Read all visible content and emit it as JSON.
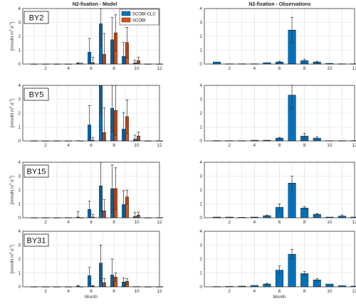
{
  "titles": {
    "model": "N2-fixation - Model",
    "obs": "N2-fixation - Observations"
  },
  "legend": [
    "SCOBI-CLC",
    "SCOBI"
  ],
  "ylabel": "[mmolN m^2 d^-1]",
  "xlabel": "Month",
  "colors": {
    "clc": "#0072bd",
    "scobi": "#d95319",
    "grid": "#dcdcdc",
    "axis": "#222222"
  },
  "chart_data": [
    {
      "type": "bar",
      "station": "BY2",
      "panel": "model",
      "title": "N2-fixation - Model",
      "xlabel": "",
      "ylabel": "[mmolN m^2 d^-1]",
      "xlim": [
        0,
        12
      ],
      "ylim": [
        0,
        4
      ],
      "categories": [
        1,
        2,
        3,
        4,
        5,
        6,
        7,
        8,
        9,
        10,
        11,
        12
      ],
      "series": [
        {
          "name": "SCOBI-CLC",
          "values": [
            0.01,
            0.01,
            0.01,
            0.01,
            0.05,
            0.85,
            2.9,
            1.75,
            0.55,
            0.08,
            0.01,
            0.01
          ],
          "err": [
            0,
            0,
            0,
            0,
            0.05,
            1.0,
            1.6,
            1.6,
            1.0,
            0.2,
            0,
            0
          ]
        },
        {
          "name": "SCOBI",
          "values": [
            0.01,
            0.01,
            0.01,
            0.01,
            0.02,
            0.1,
            0.7,
            2.25,
            1.55,
            0.25,
            0.01,
            0.01
          ],
          "err": [
            0,
            0,
            0,
            0,
            0.05,
            0.4,
            1.5,
            1.3,
            1.1,
            0.25,
            0,
            0
          ]
        }
      ]
    },
    {
      "type": "bar",
      "station": "BY2",
      "panel": "obs",
      "title": "N2-fixation - Observations",
      "xlabel": "",
      "ylabel": "",
      "xlim": [
        0,
        12
      ],
      "ylim": [
        0,
        4
      ],
      "categories": [
        1,
        2,
        3,
        4,
        5,
        6,
        7,
        8,
        9,
        10,
        11,
        12
      ],
      "series": [
        {
          "name": "",
          "values": [
            0.15,
            0.02,
            0.02,
            0.02,
            0.1,
            0.15,
            2.45,
            0.25,
            0.15,
            0.05,
            0.02,
            0.02
          ],
          "err": [
            0,
            0,
            0,
            0,
            0,
            0.05,
            0.9,
            0.1,
            0.05,
            0,
            0,
            0
          ]
        }
      ]
    },
    {
      "type": "bar",
      "station": "BY5",
      "panel": "model",
      "xlim": [
        0,
        12
      ],
      "ylim": [
        0,
        4
      ],
      "ylabel": "[mmolN m^2 d^-1]",
      "categories": [
        1,
        2,
        3,
        4,
        5,
        6,
        7,
        8,
        9,
        10,
        11,
        12
      ],
      "series": [
        {
          "name": "SCOBI-CLC",
          "values": [
            0.01,
            0.01,
            0.01,
            0.01,
            0.02,
            1.15,
            4.0,
            2.35,
            0.85,
            0.12,
            0.01,
            0.01
          ],
          "err": [
            0,
            0,
            0,
            0,
            0,
            1.4,
            2.0,
            1.7,
            1.2,
            0.3,
            0,
            0
          ]
        },
        {
          "name": "SCOBI",
          "values": [
            0.01,
            0.01,
            0.01,
            0.01,
            0.01,
            0.05,
            0.6,
            2.2,
            1.75,
            0.35,
            0.01,
            0.01
          ],
          "err": [
            0,
            0,
            0,
            0,
            0,
            0.2,
            1.8,
            1.8,
            1.2,
            0.3,
            0,
            0
          ]
        }
      ]
    },
    {
      "type": "bar",
      "station": "BY5",
      "panel": "obs",
      "xlim": [
        0,
        12
      ],
      "ylim": [
        0,
        4
      ],
      "categories": [
        1,
        2,
        3,
        4,
        5,
        6,
        7,
        8,
        9,
        10,
        11,
        12
      ],
      "series": [
        {
          "name": "",
          "values": [
            0.02,
            0.02,
            0.02,
            0.05,
            0.05,
            0.2,
            3.3,
            0.35,
            0.2,
            0.02,
            0.02,
            0.02
          ],
          "err": [
            0,
            0,
            0,
            0,
            0,
            0.05,
            1.0,
            0.2,
            0.1,
            0,
            0,
            0
          ]
        }
      ]
    },
    {
      "type": "bar",
      "station": "BY15",
      "panel": "model",
      "xlim": [
        0,
        12
      ],
      "ylim": [
        0,
        4
      ],
      "ylabel": "[mmolN m^2 d^-1]",
      "categories": [
        1,
        2,
        3,
        4,
        5,
        6,
        7,
        8,
        9,
        10,
        11,
        12
      ],
      "series": [
        {
          "name": "SCOBI-CLC",
          "values": [
            0.01,
            0.01,
            0.01,
            0.02,
            0.05,
            0.6,
            2.3,
            2.1,
            0.95,
            0.1,
            0.01,
            0.01
          ],
          "err": [
            0,
            0,
            0,
            0,
            0.4,
            0.6,
            1.8,
            1.7,
            1.0,
            0.3,
            0,
            0
          ]
        },
        {
          "name": "SCOBI",
          "values": [
            0.01,
            0.01,
            0.01,
            0.01,
            0.01,
            0.05,
            0.5,
            2.1,
            1.5,
            0.2,
            0.01,
            0.01
          ],
          "err": [
            0,
            0,
            0,
            0,
            0,
            0.2,
            0.8,
            1.5,
            0.5,
            0.2,
            0,
            0
          ]
        }
      ]
    },
    {
      "type": "bar",
      "station": "BY15",
      "panel": "obs",
      "xlim": [
        0,
        12
      ],
      "ylim": [
        0,
        4
      ],
      "categories": [
        1,
        2,
        3,
        4,
        5,
        6,
        7,
        8,
        9,
        10,
        11,
        12
      ],
      "series": [
        {
          "name": "",
          "values": [
            0.05,
            0.05,
            0.03,
            0.05,
            0.15,
            0.75,
            2.5,
            0.7,
            0.25,
            0.05,
            0.12,
            0.05
          ],
          "err": [
            0,
            0,
            0,
            0,
            0.05,
            0.25,
            0.5,
            0.1,
            0.05,
            0,
            0.08,
            0
          ]
        }
      ]
    },
    {
      "type": "bar",
      "station": "BY31",
      "panel": "model",
      "xlim": [
        0,
        12
      ],
      "ylim": [
        0,
        4
      ],
      "ylabel": "[mmolN m^2 d^-1]",
      "categories": [
        1,
        2,
        3,
        4,
        5,
        6,
        7,
        8,
        9,
        10,
        11,
        12
      ],
      "series": [
        {
          "name": "SCOBI-CLC",
          "values": [
            0.01,
            0.01,
            0.01,
            0.01,
            0.05,
            0.8,
            1.7,
            0.85,
            0.35,
            0.02,
            0.01,
            0.01
          ],
          "err": [
            0,
            0,
            0,
            0,
            0.05,
            0.6,
            1.3,
            1.15,
            0.3,
            0,
            0,
            0
          ]
        },
        {
          "name": "SCOBI",
          "values": [
            0.01,
            0.01,
            0.01,
            0.01,
            0.01,
            0.05,
            0.3,
            0.7,
            0.4,
            0.02,
            0.01,
            0.01
          ],
          "err": [
            0,
            0,
            0,
            0,
            0,
            0.05,
            0.3,
            0.3,
            0.2,
            0,
            0,
            0
          ]
        }
      ]
    },
    {
      "type": "bar",
      "station": "BY31",
      "panel": "obs",
      "xlim": [
        0,
        12
      ],
      "ylim": [
        0,
        4
      ],
      "categories": [
        1,
        2,
        3,
        4,
        5,
        6,
        7,
        8,
        9,
        10,
        11,
        12
      ],
      "series": [
        {
          "name": "",
          "values": [
            0.02,
            0.03,
            0.05,
            0.1,
            0.2,
            1.2,
            2.35,
            0.95,
            0.5,
            0.2,
            0.08,
            0.05
          ],
          "err": [
            0,
            0,
            0,
            0,
            0.05,
            0.3,
            0.35,
            0.15,
            0.1,
            0,
            0,
            0
          ]
        }
      ]
    }
  ]
}
